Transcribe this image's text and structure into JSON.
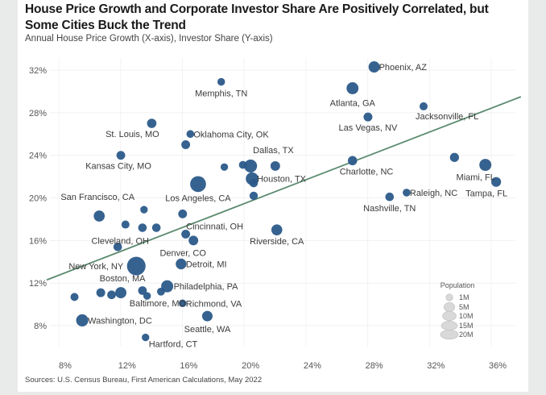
{
  "chart_data": {
    "type": "scatter",
    "title": "House Price Growth and Corporate Investor Share Are Positively Correlated, but Some Cities Buck the Trend",
    "subtitle": "Annual House Price Growth (X-axis), Investor Share (Y-axis)",
    "xlabel": "Annual House Price Growth",
    "ylabel": "Investor Share",
    "xlim": [
      6.5,
      37.5
    ],
    "ylim": [
      5.5,
      34
    ],
    "xticks": [
      8,
      12,
      16,
      20,
      24,
      28,
      32,
      36
    ],
    "yticks": [
      8,
      12,
      16,
      20,
      24,
      28,
      32
    ],
    "xtick_labels": [
      "8%",
      "12%",
      "16%",
      "20%",
      "24%",
      "28%",
      "32%",
      "36%"
    ],
    "ytick_labels": [
      "8%",
      "12%",
      "16%",
      "20%",
      "24%",
      "28%",
      "32%"
    ],
    "grid": true,
    "trendline": {
      "x": [
        6.8,
        37.5
      ],
      "y": [
        12.3,
        29.5
      ],
      "color": "#5a8a6e"
    },
    "point_color": "#2b5a8a",
    "points": [
      {
        "label": "Phoenix, AZ",
        "x": 28.0,
        "y": 32.3,
        "pop": 5
      },
      {
        "label": "Memphis, TN",
        "x": 18.1,
        "y": 30.9,
        "pop": 1.3
      },
      {
        "label": "Atlanta, GA",
        "x": 26.6,
        "y": 30.3,
        "pop": 6
      },
      {
        "label": "Jacksonville, FL",
        "x": 31.2,
        "y": 28.6,
        "pop": 1.6
      },
      {
        "label": "Las Vegas, NV",
        "x": 27.6,
        "y": 27.6,
        "pop": 2.3
      },
      {
        "label": "St. Louis, MO",
        "x": 13.6,
        "y": 27.0,
        "pop": 2.8
      },
      {
        "label": "Oklahoma City, OK",
        "x": 16.1,
        "y": 26.0,
        "pop": 1.4
      },
      {
        "label": "",
        "x": 15.8,
        "y": 25.0,
        "pop": 2.2
      },
      {
        "label": "Kansas City, MO",
        "x": 11.6,
        "y": 24.0,
        "pop": 2.2
      },
      {
        "label": "",
        "x": 33.2,
        "y": 23.8,
        "pop": 2.5
      },
      {
        "label": "Miami, FL",
        "x": 35.2,
        "y": 23.1,
        "pop": 6.1
      },
      {
        "label": "Charlotte, NC",
        "x": 26.6,
        "y": 23.5,
        "pop": 2.7
      },
      {
        "label": "",
        "x": 18.3,
        "y": 22.9,
        "pop": 1.2
      },
      {
        "label": "",
        "x": 19.5,
        "y": 23.1,
        "pop": 1.5
      },
      {
        "label": "Dallas, TX",
        "x": 20.0,
        "y": 23.0,
        "pop": 7.6
      },
      {
        "label": "",
        "x": 21.6,
        "y": 23.0,
        "pop": 3
      },
      {
        "label": "Tampa, FL",
        "x": 35.9,
        "y": 21.5,
        "pop": 3.2
      },
      {
        "label": "Houston, TX",
        "x": 20.1,
        "y": 21.8,
        "pop": 7.1
      },
      {
        "label": "",
        "x": 20.2,
        "y": 21.4,
        "pop": 2
      },
      {
        "label": "Los Angeles, CA",
        "x": 16.6,
        "y": 21.3,
        "pop": 13.2
      },
      {
        "label": "",
        "x": 20.2,
        "y": 20.2,
        "pop": 1.8
      },
      {
        "label": "Raleigh, NC",
        "x": 30.1,
        "y": 20.5,
        "pop": 1.4
      },
      {
        "label": "Nashville, TN",
        "x": 29.0,
        "y": 20.1,
        "pop": 2
      },
      {
        "label": "San Francisco, CA",
        "x": 10.2,
        "y": 18.3,
        "pop": 4.7
      },
      {
        "label": "",
        "x": 13.1,
        "y": 18.9,
        "pop": 1.2
      },
      {
        "label": "",
        "x": 15.6,
        "y": 18.5,
        "pop": 2.2
      },
      {
        "label": "",
        "x": 11.9,
        "y": 17.5,
        "pop": 1.6
      },
      {
        "label": "",
        "x": 13.0,
        "y": 17.2,
        "pop": 2
      },
      {
        "label": "",
        "x": 13.9,
        "y": 17.2,
        "pop": 2
      },
      {
        "label": "Cincinnati, OH",
        "x": 15.8,
        "y": 16.6,
        "pop": 2.2
      },
      {
        "label": "Riverside, CA",
        "x": 21.7,
        "y": 17.0,
        "pop": 4.6
      },
      {
        "label": "Denver, CO",
        "x": 16.3,
        "y": 16.0,
        "pop": 3
      },
      {
        "label": "Cleveland, OH",
        "x": 11.4,
        "y": 15.4,
        "pop": 2
      },
      {
        "label": "New York, NY",
        "x": 12.6,
        "y": 13.6,
        "pop": 19.8
      },
      {
        "label": "Detroit, MI",
        "x": 15.5,
        "y": 13.8,
        "pop": 4.3
      },
      {
        "label": "Philadelphia, PA",
        "x": 14.6,
        "y": 11.7,
        "pop": 6.2
      },
      {
        "label": "",
        "x": 14.2,
        "y": 11.2,
        "pop": 1.5
      },
      {
        "label": "",
        "x": 8.6,
        "y": 10.7,
        "pop": 1.6
      },
      {
        "label": "",
        "x": 10.3,
        "y": 11.1,
        "pop": 2.3
      },
      {
        "label": "",
        "x": 11.0,
        "y": 10.9,
        "pop": 2.1
      },
      {
        "label": "Boston, MA",
        "x": 11.6,
        "y": 11.1,
        "pop": 4.9
      },
      {
        "label": "",
        "x": 13.0,
        "y": 11.3,
        "pop": 2.1
      },
      {
        "label": "Baltimore, MD",
        "x": 13.3,
        "y": 10.8,
        "pop": 1.3
      },
      {
        "label": "Richmond, VA",
        "x": 15.6,
        "y": 10.1,
        "pop": 1.3
      },
      {
        "label": "Washington, DC",
        "x": 9.1,
        "y": 8.5,
        "pop": 6.3
      },
      {
        "label": "Seattle, WA",
        "x": 17.2,
        "y": 8.9,
        "pop": 4
      },
      {
        "label": "Hartford, CT",
        "x": 13.2,
        "y": 6.9,
        "pop": 1.2
      }
    ],
    "legend": {
      "title": "Population",
      "placement": "bottom-right",
      "entries": [
        {
          "label": "1M",
          "pop": 1
        },
        {
          "label": "5M",
          "pop": 5
        },
        {
          "label": "10M",
          "pop": 10
        },
        {
          "label": "15M",
          "pop": 15
        },
        {
          "label": "20M",
          "pop": 20
        }
      ]
    },
    "source": "Sources: U.S. Census Bureau, First American Calculations, May 2022"
  }
}
